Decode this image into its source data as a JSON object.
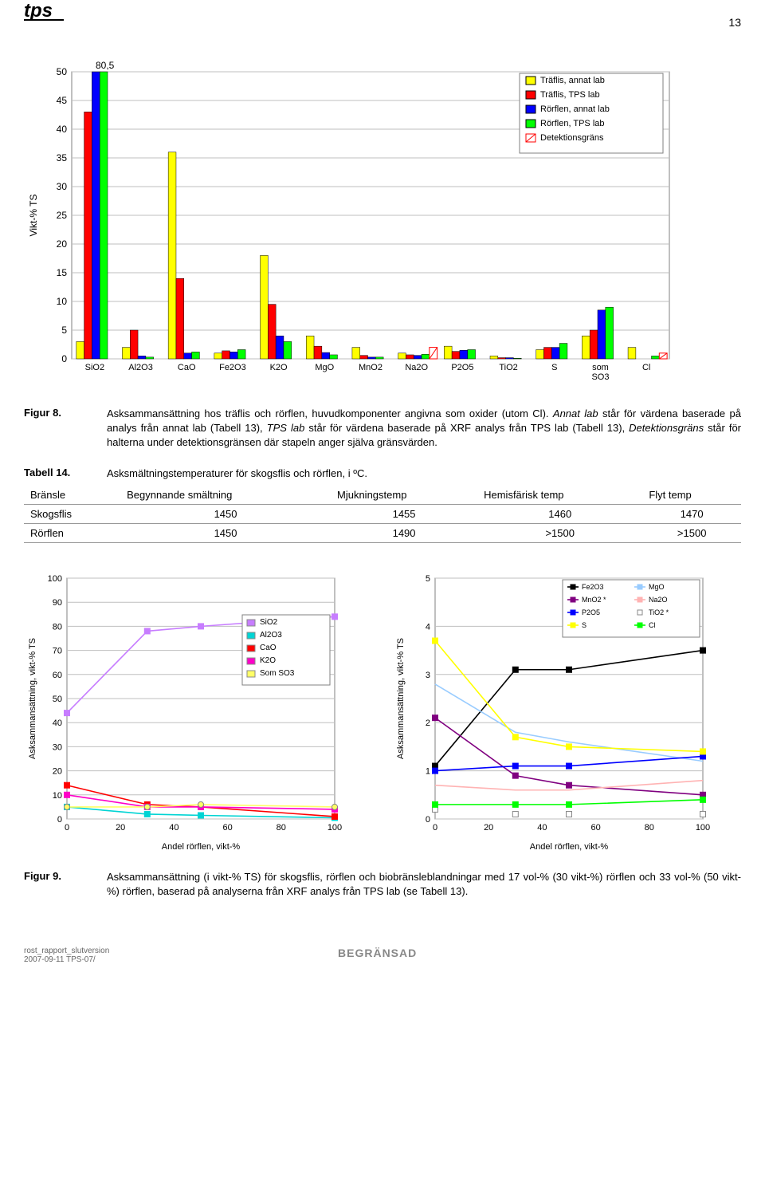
{
  "page_number": "13",
  "logo_text": "tps",
  "bar_chart": {
    "type": "bar",
    "ylabel": "Vikt-% TS",
    "ylim": [
      0,
      50
    ],
    "ytick_step": 5,
    "note_text": "80,5",
    "categories": [
      "SiO2",
      "Al2O3",
      "CaO",
      "Fe2O3",
      "K2O",
      "MgO",
      "MnO2",
      "Na2O",
      "P2O5",
      "TiO2",
      "S",
      "som SO3",
      "Cl"
    ],
    "series_labels": [
      "Träflis, annat lab",
      "Träflis, TPS lab",
      "Rörflen, annat lab",
      "Rörflen, TPS lab",
      "Detektionsgräns"
    ],
    "colors": {
      "yellow": "#ffff00",
      "red": "#ff0000",
      "blue": "#0000ff",
      "green": "#00ff00",
      "hatch": "#ff0000"
    },
    "bg": "#ffffff",
    "grid": "#bfbfbf",
    "border": "#808080",
    "data": {
      "SiO2": [
        3.0,
        43,
        80.5,
        80.5,
        0
      ],
      "Al2O3": [
        2.0,
        5.0,
        0.5,
        0.3,
        0
      ],
      "CaO": [
        36,
        14,
        1.0,
        1.2,
        0
      ],
      "Fe2O3": [
        1.0,
        1.4,
        1.2,
        1.6,
        0
      ],
      "K2O": [
        18,
        9.5,
        4.0,
        3.0,
        0
      ],
      "MgO": [
        4.0,
        2.2,
        1.1,
        0.7,
        0
      ],
      "MnO2": [
        2.0,
        0.6,
        0.3,
        0.3,
        0
      ],
      "Na2O": [
        1.0,
        0.7,
        0.6,
        0.8,
        2.0
      ],
      "P2O5": [
        2.2,
        1.3,
        1.5,
        1.6,
        0
      ],
      "TiO2": [
        0.5,
        0.2,
        0.2,
        0.1,
        0
      ],
      "S": [
        1.6,
        2.0,
        2.0,
        2.7,
        0
      ],
      "som SO3": [
        4.0,
        5.0,
        8.5,
        9.0,
        0
      ],
      "Cl": [
        2.0,
        0,
        0,
        0.5,
        1.0
      ]
    }
  },
  "figure8": {
    "label": "Figur 8.",
    "body_pre": "Asksammansättning hos träflis och rörflen, huvudkomponenter angivna som oxider (utom Cl). ",
    "body_em1": "Annat lab",
    "body_mid1": " står för värdena baserade på analys från annat lab (Tabell 13), ",
    "body_em2": "TPS lab",
    "body_mid2": " står för värdena baserade på XRF analys från TPS lab (Tabell 13), ",
    "body_em3": "Detektionsgräns",
    "body_post": " står för halterna under detektionsgränsen där stapeln anger själva gränsvärden."
  },
  "table14": {
    "label": "Tabell 14.",
    "title": "Asksmältningstemperaturer för skogsflis och rörflen, i ºC.",
    "columns": [
      "Bränsle",
      "Begynnande smältning",
      "Mjukningstemp",
      "Hemisfärisk temp",
      "Flyt temp"
    ],
    "rows": [
      [
        "Skogsflis",
        "1450",
        "1455",
        "1460",
        "1470"
      ],
      [
        "Rörflen",
        "1450",
        "1490",
        ">1500",
        ">1500"
      ]
    ]
  },
  "line_chart_left": {
    "type": "line",
    "ylabel": "Asksammansättning, vikt-% TS",
    "xlabel": "Andel rörflen, vikt-%",
    "ylim": [
      0,
      100
    ],
    "ytick_step": 10,
    "xlim": [
      0,
      100
    ],
    "xtick_step": 20,
    "series": [
      {
        "name": "SiO2",
        "color": "#c77dff",
        "marker": "square",
        "x": [
          0,
          30,
          50,
          100
        ],
        "y": [
          44,
          78,
          80,
          84
        ]
      },
      {
        "name": "Al2O3",
        "color": "#00d4d4",
        "marker": "square",
        "x": [
          0,
          30,
          50,
          100
        ],
        "y": [
          5,
          2,
          1.5,
          0.5
        ]
      },
      {
        "name": "CaO",
        "color": "#ff0000",
        "marker": "square",
        "x": [
          0,
          30,
          50,
          100
        ],
        "y": [
          14,
          6,
          5,
          1
        ]
      },
      {
        "name": "K2O",
        "color": "#ff00c8",
        "marker": "square",
        "x": [
          0,
          30,
          50,
          100
        ],
        "y": [
          10,
          5,
          5,
          4
        ]
      },
      {
        "name": "Som SO3",
        "color": "#ffff66",
        "marker": "circle",
        "x": [
          0,
          30,
          50,
          100
        ],
        "y": [
          5,
          5,
          6,
          5
        ]
      }
    ]
  },
  "line_chart_right": {
    "type": "line",
    "ylabel": "Asksammansättning, vikt-% TS",
    "xlabel": "Andel rörflen, vikt-%",
    "ylim": [
      0,
      5
    ],
    "ytick_step": 1,
    "xlim": [
      0,
      100
    ],
    "xtick_step": 20,
    "series": [
      {
        "name": "Fe2O3",
        "color": "#000000",
        "marker": "square",
        "x": [
          0,
          30,
          50,
          100
        ],
        "y": [
          1.1,
          3.1,
          3.1,
          3.5
        ]
      },
      {
        "name": "MgO",
        "color": "#99ccff",
        "marker": "line",
        "x": [
          0,
          30,
          50,
          100
        ],
        "y": [
          2.8,
          1.8,
          1.6,
          1.2
        ]
      },
      {
        "name": "MnO2 *",
        "color": "#800080",
        "marker": "square",
        "x": [
          0,
          30,
          50,
          100
        ],
        "y": [
          2.1,
          0.9,
          0.7,
          0.5
        ]
      },
      {
        "name": "Na2O",
        "color": "#ffb3b3",
        "marker": "line",
        "x": [
          0,
          30,
          50,
          100
        ],
        "y": [
          0.7,
          0.6,
          0.6,
          0.8
        ]
      },
      {
        "name": "P2O5",
        "color": "#0000ff",
        "marker": "square",
        "x": [
          0,
          30,
          50,
          100
        ],
        "y": [
          1.0,
          1.1,
          1.1,
          1.3
        ]
      },
      {
        "name": "TiO2 *",
        "color": "#ffffff",
        "marker": "square-open",
        "x": [
          0,
          30,
          50,
          100
        ],
        "y": [
          0.2,
          0.1,
          0.1,
          0.1
        ]
      },
      {
        "name": "S",
        "color": "#ffff00",
        "marker": "square",
        "x": [
          0,
          30,
          50,
          100
        ],
        "y": [
          3.7,
          1.7,
          1.5,
          1.4
        ]
      },
      {
        "name": "Cl",
        "color": "#00ff00",
        "marker": "square",
        "x": [
          0,
          30,
          50,
          100
        ],
        "y": [
          0.3,
          0.3,
          0.3,
          0.4
        ]
      }
    ]
  },
  "figure9": {
    "label": "Figur 9.",
    "body": "Asksammansättning (i vikt-% TS) för skogsflis, rörflen och biobränsleblandningar med 17 vol-% (30 vikt-%) rörflen och 33 vol-% (50 vikt-%) rörflen, baserad på analyserna från XRF analys från TPS lab (se Tabell 13)."
  },
  "footer": {
    "left1": "rost_rapport_slutversion",
    "left2": "2007-09-11 TPS-07/",
    "center": "BEGRÄNSAD"
  }
}
